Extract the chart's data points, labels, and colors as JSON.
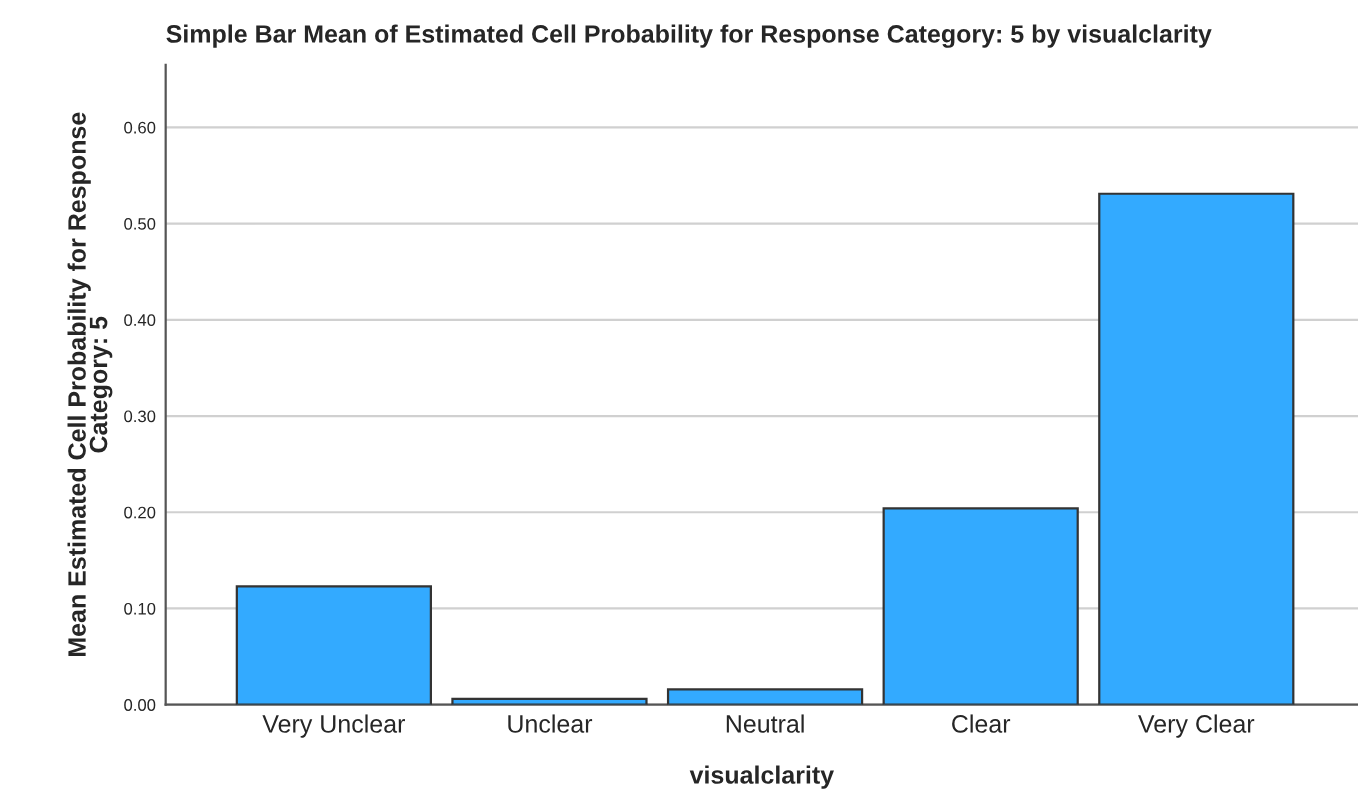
{
  "chart_data": {
    "type": "bar",
    "title": "Simple Bar Mean of Estimated Cell Probability for Response Category: 5 by visualclarity",
    "xlabel": "visualclarity",
    "ylabel": "Mean Estimated Cell Probability for Response\nCategory: 5",
    "categories": [
      "Very Unclear",
      "Unclear",
      "Neutral",
      "Clear",
      "Very Clear"
    ],
    "values": [
      0.123,
      0.006,
      0.016,
      0.204,
      0.531
    ],
    "color": "#33aaff",
    "ylim": [
      0,
      0.665
    ],
    "yticks": [
      {
        "value": 0,
        "label": "0.00"
      },
      {
        "value": 0.1,
        "label": "0.10"
      },
      {
        "value": 0.2,
        "label": "0.20"
      },
      {
        "value": 0.3,
        "label": "0.30"
      },
      {
        "value": 0.4,
        "label": "0.40"
      },
      {
        "value": 0.5,
        "label": "0.50"
      },
      {
        "value": 0.6,
        "label": "0.60"
      }
    ],
    "grid": "y"
  }
}
